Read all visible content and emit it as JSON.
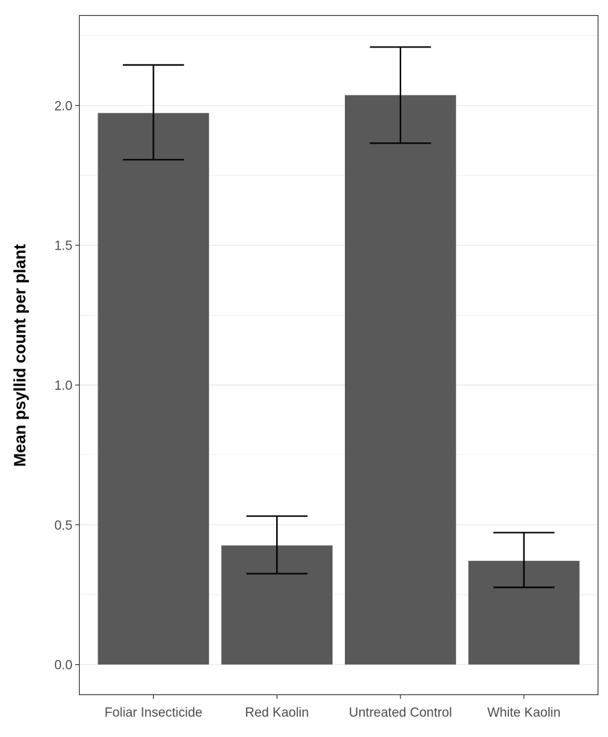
{
  "chart_data": {
    "type": "bar",
    "title": "",
    "xlabel": "",
    "ylabel": "Mean psyllid count per plant",
    "categories": [
      "Foliar Insecticide",
      "Red Kaolin",
      "Untreated Control",
      "White Kaolin"
    ],
    "values": [
      1.973,
      0.426,
      2.037,
      0.371
    ],
    "error_lower": [
      1.806,
      0.325,
      1.865,
      0.276
    ],
    "error_upper": [
      2.145,
      0.531,
      2.209,
      0.472
    ],
    "ylim": [
      -0.108,
      2.322
    ],
    "yticks": [
      0.0,
      0.5,
      1.0,
      1.5,
      2.0
    ],
    "ytick_labels": [
      "0.0",
      "0.5",
      "1.0",
      "1.5",
      "2.0"
    ],
    "grid": true,
    "bar_color": "#595959",
    "error_bar_color": "#000000"
  }
}
